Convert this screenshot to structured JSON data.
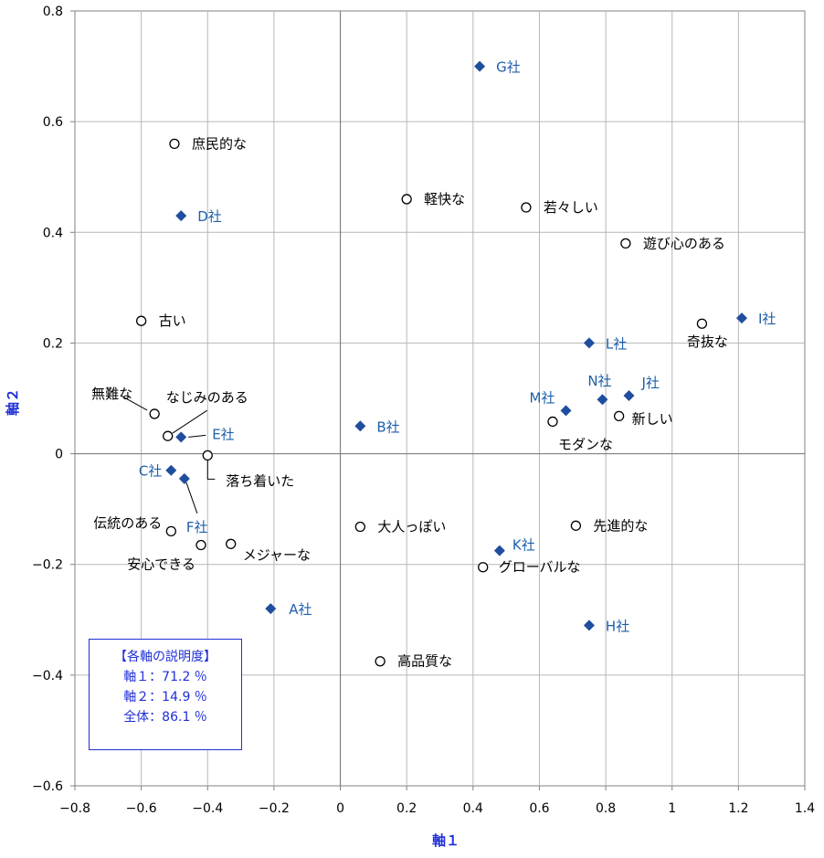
{
  "colors": {
    "company": "#1f4e9e",
    "company_label": "#1f5fa8",
    "attribute_marker": "#000000",
    "axis_title": "#1f2fd6",
    "grid": "#b7b7b7",
    "info_box_text": "#1f2fd6"
  },
  "chart_data": {
    "type": "scatter",
    "xlabel": "軸１",
    "ylabel": "軸２",
    "xlim": [
      -0.8,
      1.4
    ],
    "ylim": [
      -0.6,
      0.8
    ],
    "x_ticks": [
      -0.8,
      -0.6,
      -0.4,
      -0.2,
      0,
      0.2,
      0.4,
      0.6,
      0.8,
      1,
      1.2,
      1.4
    ],
    "x_tick_labels": [
      "−0.8",
      "−0.6",
      "−0.4",
      "−0.2",
      "0",
      "0.2",
      "0.4",
      "0.6",
      "0.8",
      "1",
      "1.2",
      "1.4"
    ],
    "y_ticks": [
      -0.6,
      -0.4,
      -0.2,
      0,
      0.2,
      0.4,
      0.6,
      0.8
    ],
    "y_tick_labels": [
      "−0.6",
      "−0.4",
      "−0.2",
      "0",
      "0.2",
      "0.4",
      "0.6",
      "0.8"
    ],
    "grid": true,
    "series": [
      {
        "marker": "diamond",
        "points": [
          {
            "label": "A社",
            "x": -0.21,
            "y": -0.28
          },
          {
            "label": "B社",
            "x": 0.06,
            "y": 0.05
          },
          {
            "label": "C社",
            "x": -0.51,
            "y": -0.03
          },
          {
            "label": "D社",
            "x": -0.48,
            "y": 0.43
          },
          {
            "label": "E社",
            "x": -0.48,
            "y": 0.03
          },
          {
            "label": "F社",
            "x": -0.47,
            "y": -0.045
          },
          {
            "label": "G社",
            "x": 0.42,
            "y": 0.7
          },
          {
            "label": "H社",
            "x": 0.75,
            "y": -0.31
          },
          {
            "label": "I社",
            "x": 1.21,
            "y": 0.245
          },
          {
            "label": "J社",
            "x": 0.87,
            "y": 0.105
          },
          {
            "label": "K社",
            "x": 0.48,
            "y": -0.175
          },
          {
            "label": "L社",
            "x": 0.75,
            "y": 0.2
          },
          {
            "label": "M社",
            "x": 0.68,
            "y": 0.078
          },
          {
            "label": "N社",
            "x": 0.79,
            "y": 0.098
          }
        ]
      },
      {
        "marker": "circle",
        "points": [
          {
            "label": "庶民的な",
            "x": -0.5,
            "y": 0.56
          },
          {
            "label": "軽快な",
            "x": 0.2,
            "y": 0.46
          },
          {
            "label": "若々しい",
            "x": 0.56,
            "y": 0.445
          },
          {
            "label": "遊び心のある",
            "x": 0.86,
            "y": 0.38
          },
          {
            "label": "古い",
            "x": -0.6,
            "y": 0.24
          },
          {
            "label": "奇抜な",
            "x": 1.09,
            "y": 0.235
          },
          {
            "label": "無難な",
            "x": -0.56,
            "y": 0.072
          },
          {
            "label": "なじみのある",
            "x": -0.52,
            "y": 0.032
          },
          {
            "label": "落ち着いた",
            "x": -0.4,
            "y": -0.003
          },
          {
            "label": "新しい",
            "x": 0.84,
            "y": 0.068
          },
          {
            "label": "モダンな",
            "x": 0.64,
            "y": 0.058
          },
          {
            "label": "伝統のある",
            "x": -0.51,
            "y": -0.14
          },
          {
            "label": "安心できる",
            "x": -0.42,
            "y": -0.165
          },
          {
            "label": "メジャーな",
            "x": -0.33,
            "y": -0.163
          },
          {
            "label": "大人っぽい",
            "x": 0.06,
            "y": -0.132
          },
          {
            "label": "先進的な",
            "x": 0.71,
            "y": -0.13
          },
          {
            "label": "グローバルな",
            "x": 0.43,
            "y": -0.205
          },
          {
            "label": "高品質な",
            "x": 0.12,
            "y": -0.375
          }
        ]
      }
    ],
    "info_box": {
      "title": "【各軸の説明度】",
      "lines": [
        "軸１：71.2 ％",
        "軸２：14.9 ％",
        "全体：86.1 ％"
      ]
    }
  }
}
